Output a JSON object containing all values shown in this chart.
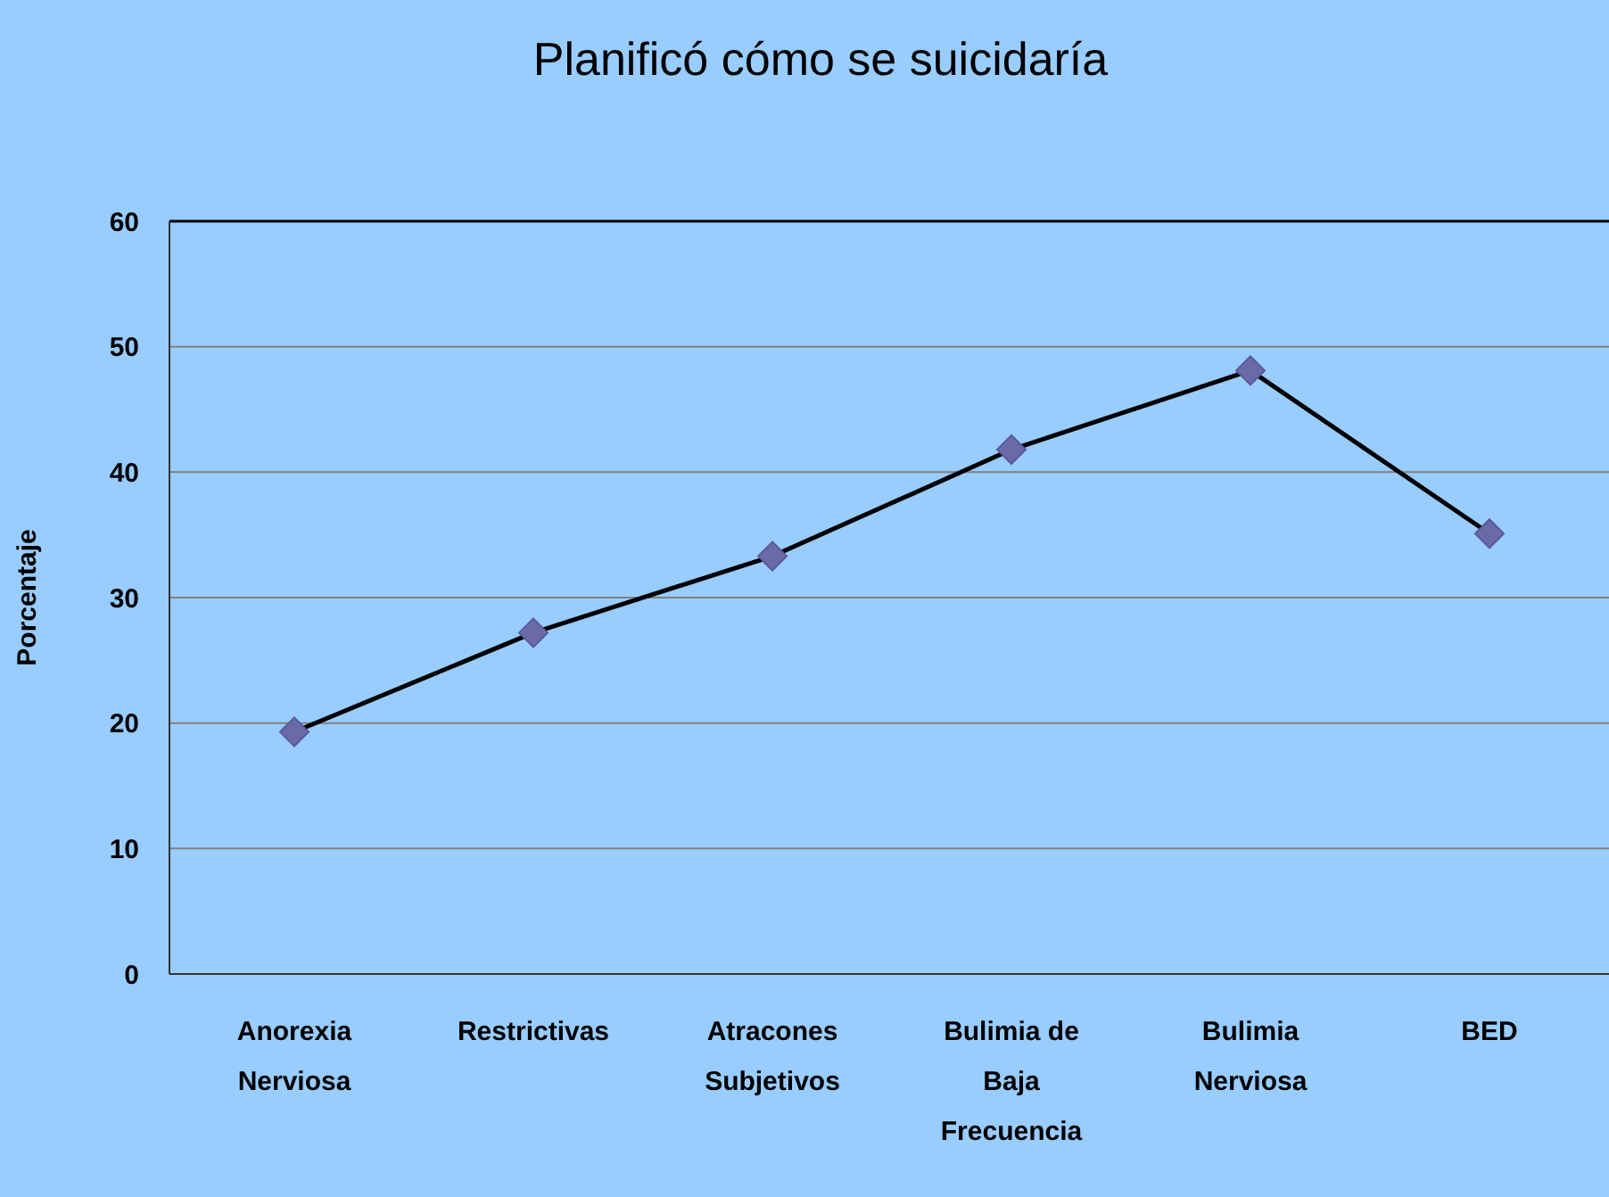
{
  "chart_data": {
    "type": "line",
    "title": "Planificó cómo se suicidaría",
    "ylabel": "Porcentaje",
    "categories": [
      "Anorexia Nerviosa",
      "Restrictivas",
      "Atracones Subjetivos",
      "Bulimia de Baja Frecuencia",
      "Bulimia Nerviosa",
      "BED"
    ],
    "series": [
      {
        "color": "#000000",
        "values": [
          19.3,
          27.2,
          33.3,
          41.8,
          48.1,
          35.1
        ]
      }
    ],
    "marker": "diamond",
    "ylim": [
      0,
      60
    ],
    "yticks": [
      0,
      10,
      20,
      30,
      40,
      50,
      60
    ],
    "grid": "y"
  }
}
